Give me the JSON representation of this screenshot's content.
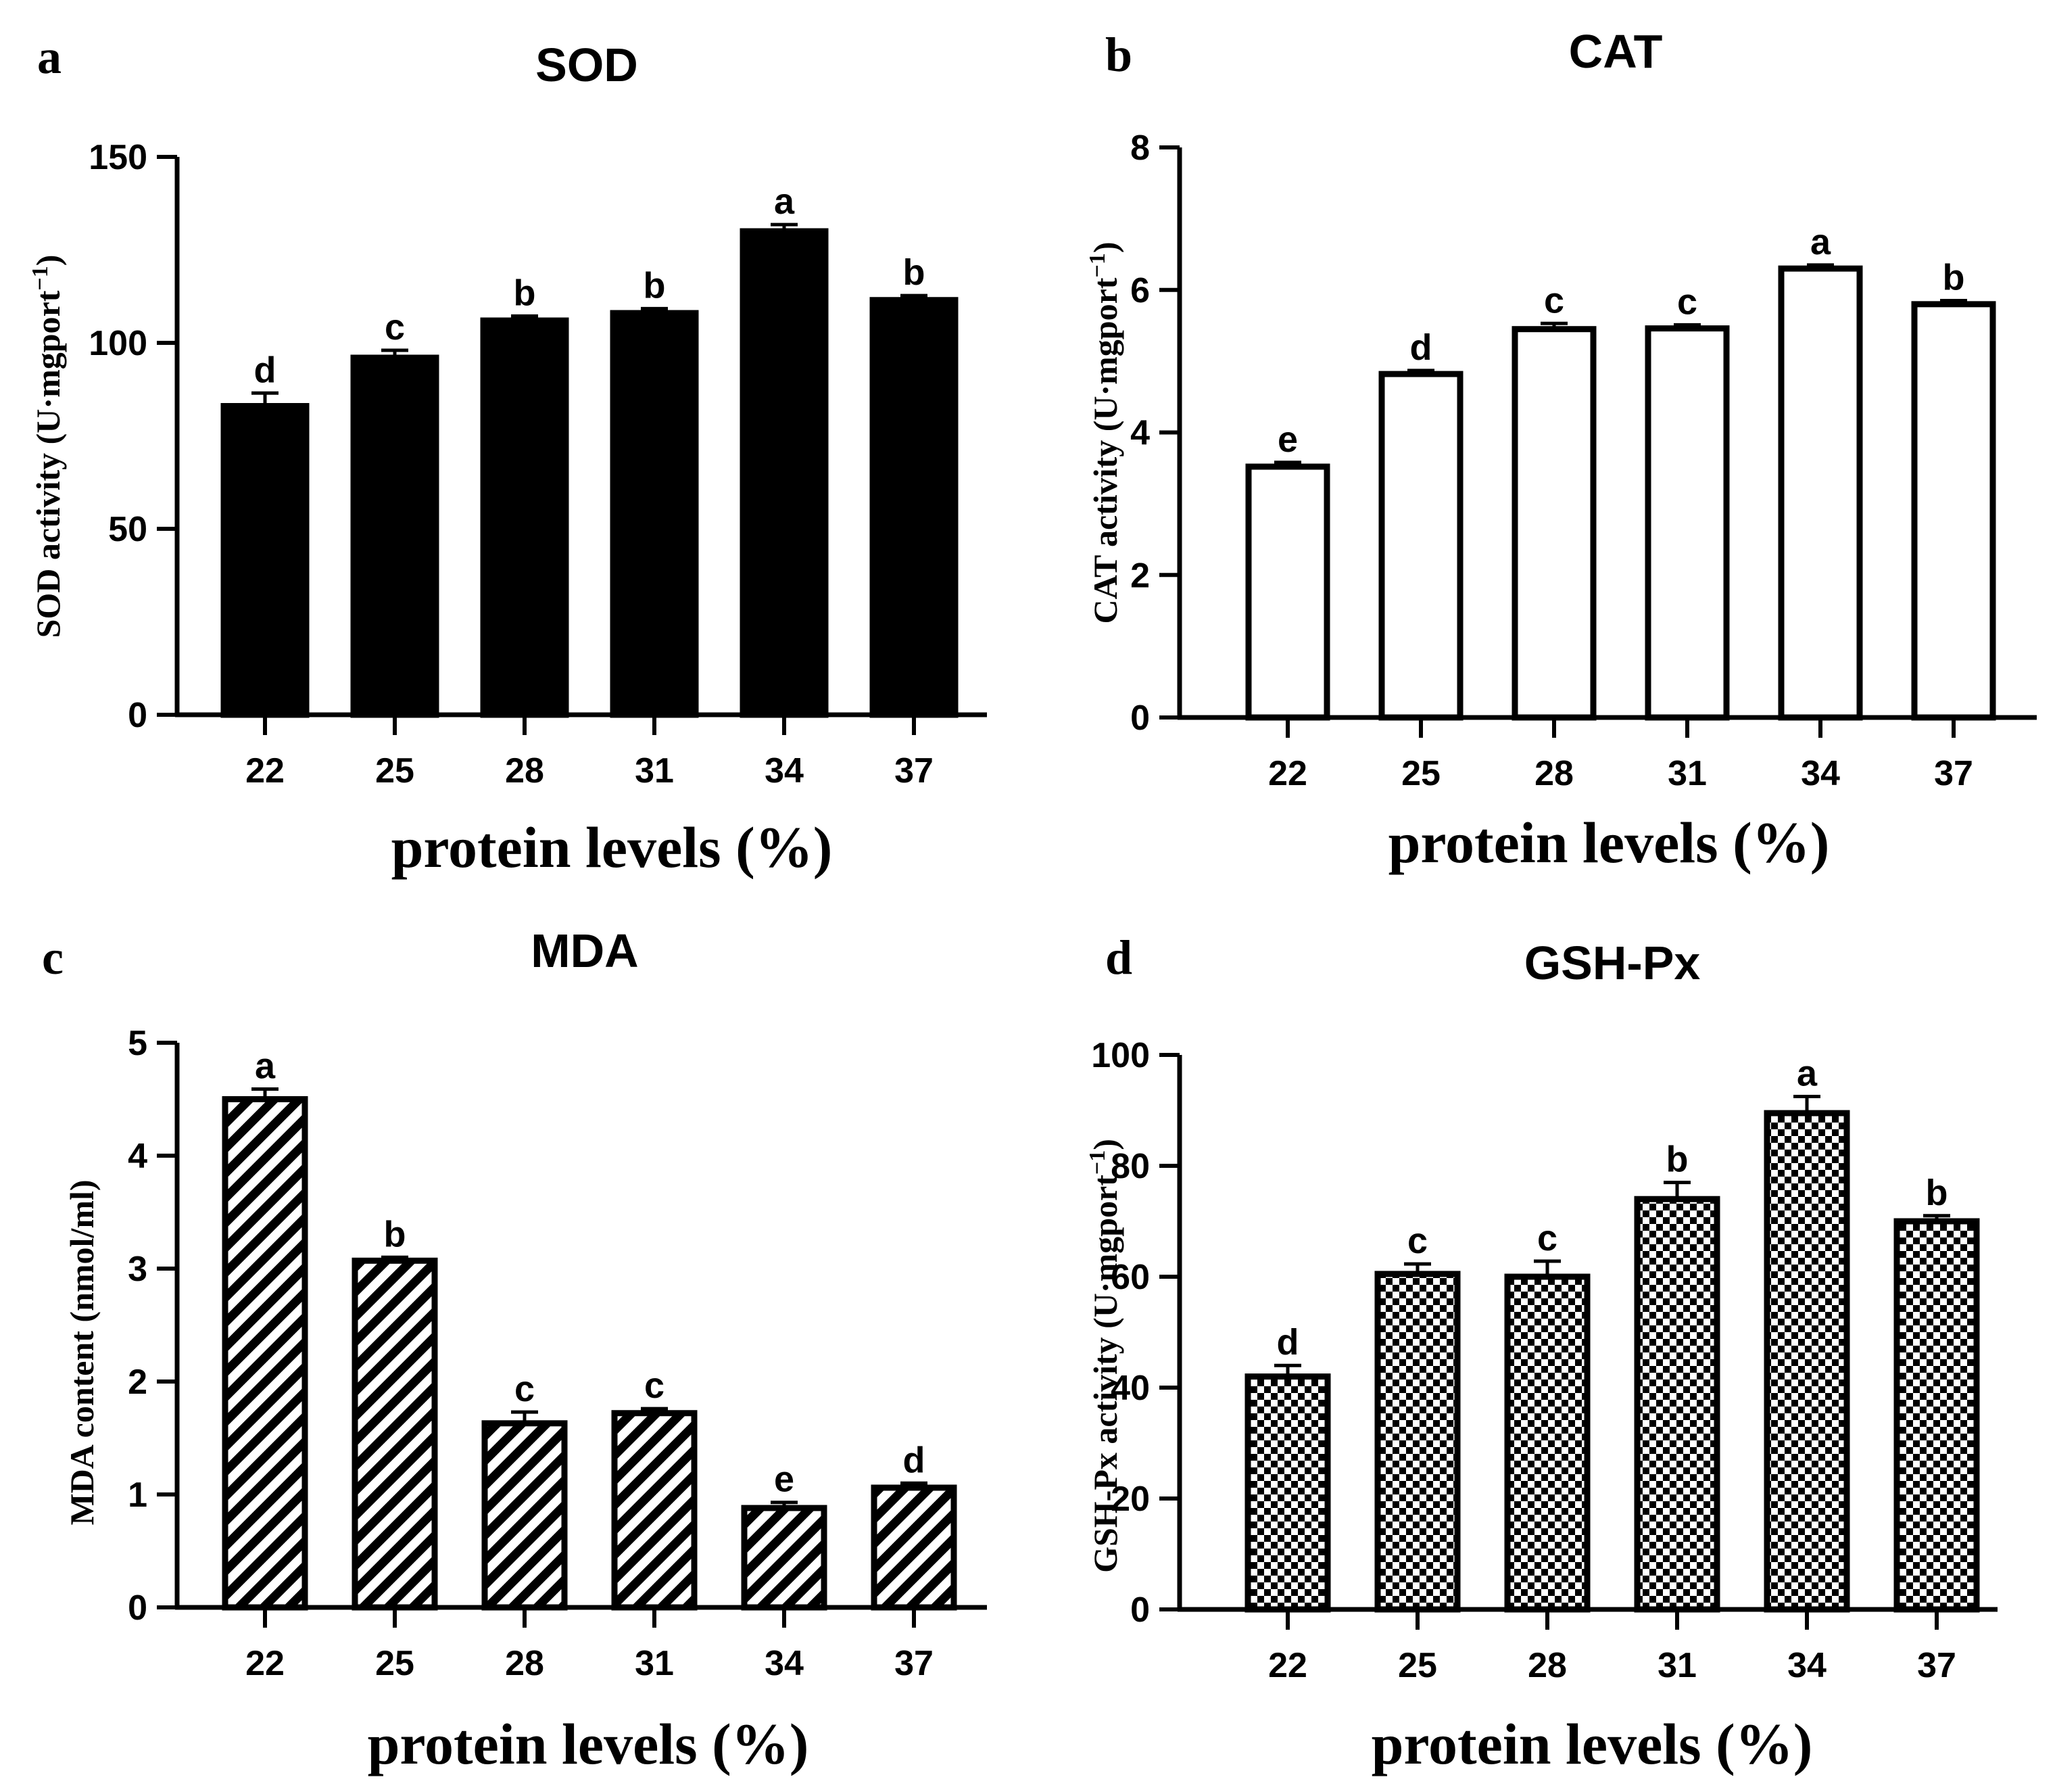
{
  "panels": [
    {
      "letter": "a"
    },
    {
      "letter": "b"
    },
    {
      "letter": "c"
    },
    {
      "letter": "d"
    }
  ],
  "chart_data": [
    {
      "type": "bar",
      "title": "SOD",
      "ylabel": "SOD activity (U·mgport",
      "ylabel_sup": "−1",
      "ylabel_close": ")",
      "xlabel": "protein levels (%)",
      "categories": [
        "22",
        "25",
        "28",
        "31",
        "34",
        "37"
      ],
      "values": [
        83,
        96,
        106,
        108,
        130,
        111.5
      ],
      "errors": [
        3.5,
        2,
        1.2,
        1.2,
        1.8,
        1.2
      ],
      "sig_letters": [
        "d",
        "c",
        "b",
        "b",
        "a",
        "b"
      ],
      "ylim": [
        0,
        150
      ],
      "yticks": [
        "0",
        "50",
        "100",
        "150"
      ],
      "fill": "solid",
      "bar_color": "#000000"
    },
    {
      "type": "bar",
      "title": "CAT",
      "ylabel": "CAT activity (U·mgport",
      "ylabel_sup": "−1",
      "ylabel_close": ")",
      "xlabel": "protein levels (%)",
      "categories": [
        "22",
        "25",
        "28",
        "31",
        "34",
        "37"
      ],
      "values": [
        3.52,
        4.82,
        5.45,
        5.46,
        6.3,
        5.8
      ],
      "errors": [
        0.06,
        0.05,
        0.08,
        0.05,
        0.05,
        0.05
      ],
      "sig_letters": [
        "e",
        "d",
        "c",
        "c",
        "a",
        "b"
      ],
      "ylim": [
        0,
        8
      ],
      "yticks": [
        "0",
        "2",
        "4",
        "6",
        "8"
      ],
      "fill": "white",
      "bar_color": "#ffffff"
    },
    {
      "type": "bar",
      "title": "MDA",
      "ylabel": "MDA content (nmol/ml)",
      "ylabel_sup": "",
      "ylabel_close": "",
      "xlabel": "protein levels (%)",
      "categories": [
        "22",
        "25",
        "28",
        "31",
        "34",
        "37"
      ],
      "values": [
        4.5,
        3.07,
        1.63,
        1.72,
        0.88,
        1.06
      ],
      "errors": [
        0.09,
        0.03,
        0.1,
        0.04,
        0.05,
        0.04
      ],
      "sig_letters": [
        "a",
        "b",
        "c",
        "c",
        "e",
        "d"
      ],
      "ylim": [
        0,
        5
      ],
      "yticks": [
        "0",
        "1",
        "2",
        "3",
        "4",
        "5"
      ],
      "fill": "hatch",
      "bar_color": "#000000"
    },
    {
      "type": "bar",
      "title": "GSH-Px",
      "ylabel": "GSH-Px activity (U·mgport",
      "ylabel_sup": "−1",
      "ylabel_close": ")",
      "xlabel": "protein levels (%)",
      "categories": [
        "22",
        "25",
        "28",
        "31",
        "34",
        "37"
      ],
      "values": [
        42,
        60.5,
        60,
        74,
        89.5,
        70
      ],
      "errors": [
        2,
        1.8,
        2.8,
        3,
        3,
        1
      ],
      "sig_letters": [
        "d",
        "c",
        "c",
        "b",
        "a",
        "b"
      ],
      "ylim": [
        0,
        100
      ],
      "yticks": [
        "0",
        "20",
        "40",
        "60",
        "80",
        "100"
      ],
      "fill": "checker",
      "bar_color": "#000000"
    }
  ]
}
